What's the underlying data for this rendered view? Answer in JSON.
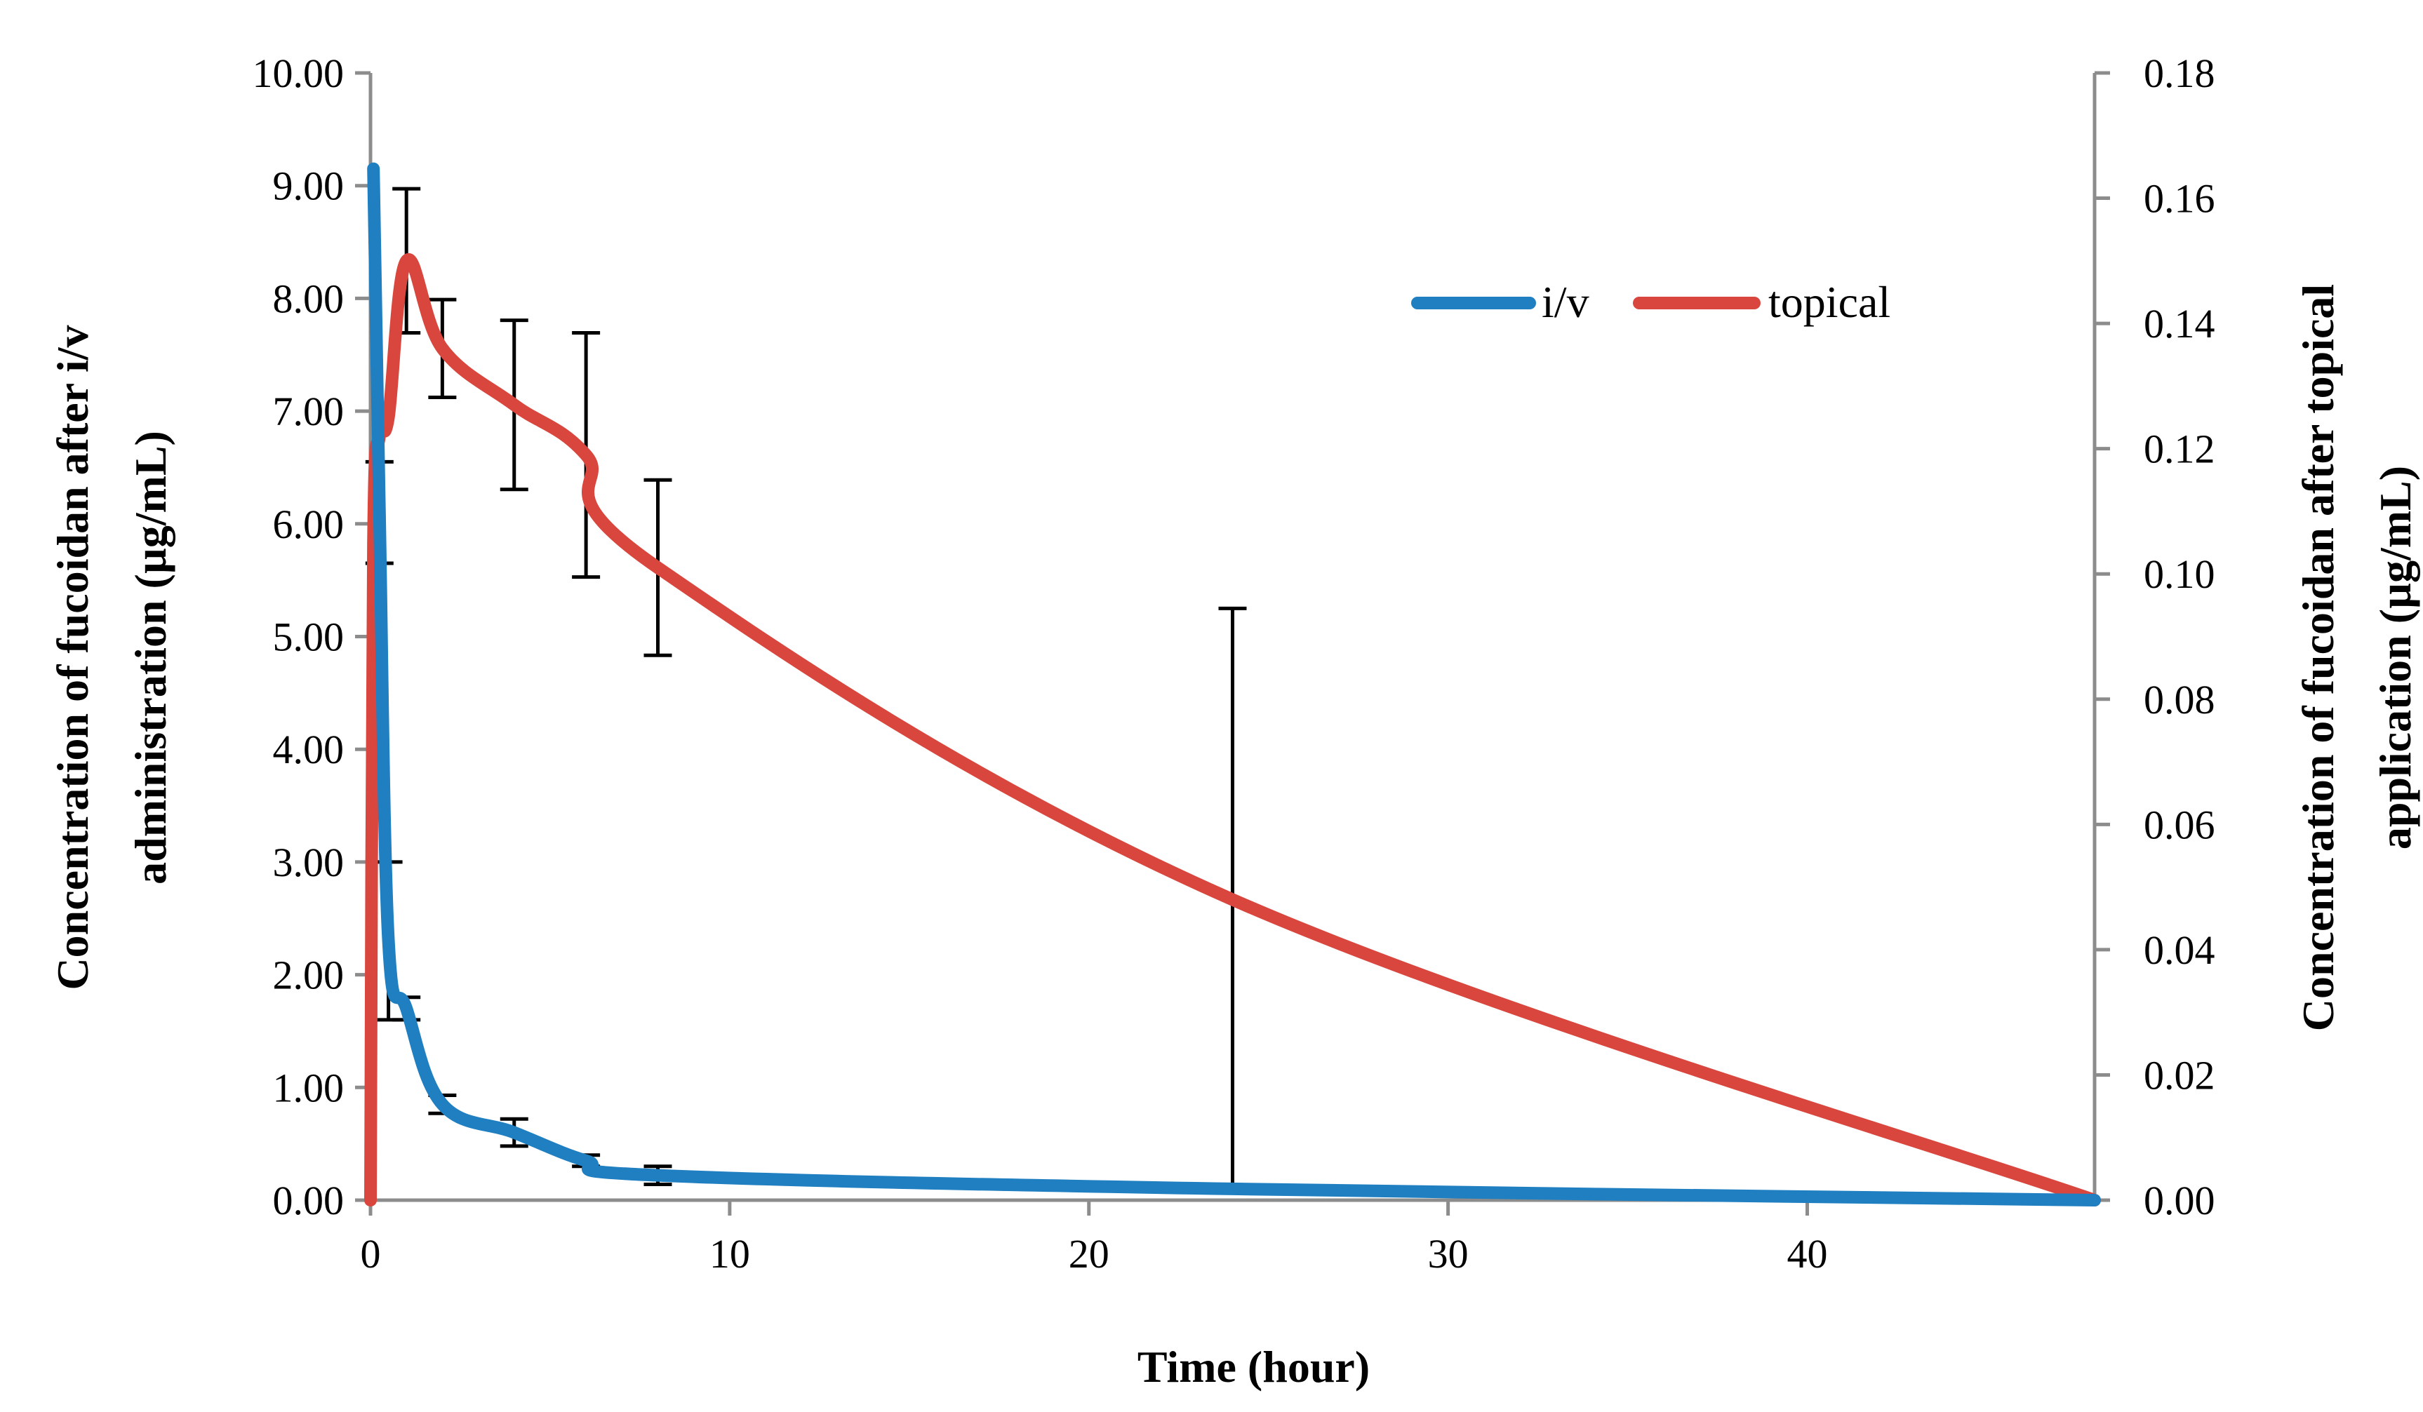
{
  "chart_data": {
    "type": "line",
    "title": "",
    "xlabel": "Time (hour)",
    "ylabel_left": "Concentration of fucoidan after i/v administration (µg/mL)",
    "ylabel_left_lines": [
      "Concentration of fucoidan after i/v",
      "administration (µg/mL)"
    ],
    "ylabel_right": "Concentration of fucoidan after topical application (µg/mL)",
    "ylabel_right_lines": [
      "Concentration of fucoidan after topical",
      "application (µg/mL)"
    ],
    "xlim": [
      0,
      48
    ],
    "ylim_left": [
      0,
      10
    ],
    "ylim_right": [
      0,
      0.18
    ],
    "x_ticks": [
      0,
      10,
      20,
      30,
      40
    ],
    "x_tick_labels": [
      "0",
      "10",
      "20",
      "30",
      "40"
    ],
    "y_left_ticks": [
      0,
      1,
      2,
      3,
      4,
      5,
      6,
      7,
      8,
      9,
      10
    ],
    "y_left_tick_labels": [
      "0.00",
      "1.00",
      "2.00",
      "3.00",
      "4.00",
      "5.00",
      "6.00",
      "7.00",
      "8.00",
      "9.00",
      "10.00"
    ],
    "y_right_ticks": [
      0,
      0.02,
      0.04,
      0.06,
      0.08,
      0.1,
      0.12,
      0.14,
      0.16,
      0.18
    ],
    "y_right_tick_labels": [
      "0.00",
      "0.02",
      "0.04",
      "0.06",
      "0.08",
      "0.10",
      "0.12",
      "0.14",
      "0.16",
      "0.18"
    ],
    "grid": false,
    "legend_position": "top-right",
    "series": [
      {
        "name": "i/v",
        "axis": "left",
        "color": "#1f7fc1",
        "x": [
          0.083,
          0.25,
          0.5,
          1,
          2,
          4,
          6,
          8,
          24,
          48
        ],
        "y": [
          9.15,
          6.1,
          2.3,
          1.7,
          0.85,
          0.6,
          0.35,
          0.22,
          0.1,
          0.0
        ],
        "err": [
          0.0,
          0.45,
          0.7,
          0.1,
          0.08,
          0.12,
          0.05,
          0.08,
          0.0,
          0.0
        ]
      },
      {
        "name": "topical",
        "axis": "right",
        "color": "#d9463e",
        "x": [
          0,
          0.083,
          0.25,
          0.5,
          1,
          2,
          4,
          6,
          8,
          24,
          48
        ],
        "y": [
          0.0,
          0.105,
          0.122,
          0.125,
          0.15,
          0.136,
          0.127,
          0.119,
          0.101,
          0.048,
          0.0
        ],
        "err": [
          0.0,
          0.0,
          0.0,
          0.0,
          0.0115,
          0.0078,
          0.0135,
          0.0195,
          0.014,
          0.0465,
          0.0
        ]
      }
    ]
  }
}
